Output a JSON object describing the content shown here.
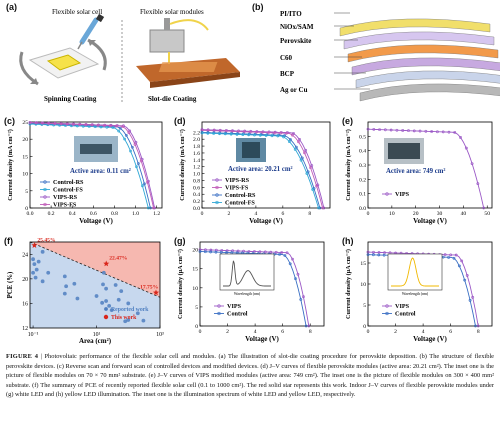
{
  "panels": {
    "a": {
      "label": "(a)",
      "cell_title": "Flexible solar cell",
      "module_title": "Flexible solar modules",
      "spin_label": "Spinning Coating",
      "slot_label": "Slot-die Coating"
    },
    "b": {
      "label": "(b)",
      "layers": [
        "PI/ITO",
        "NiOx/SAM",
        "Perovskite",
        "C60",
        "BCP",
        "Ag or Cu"
      ],
      "colors": [
        "#f1df6b",
        "#d6c6ef",
        "#f29a4a",
        "#c7a9e0",
        "#c9d4ea",
        "#b8b8b8"
      ]
    },
    "c": {
      "label": "(c)",
      "inset_text": "Active area: 0.11 cm²",
      "xlabel": "Voltage (V)",
      "ylabel": "Current density (mA cm⁻²)"
    },
    "d": {
      "label": "(d)",
      "inset_text": "Active area: 20.21 cm²",
      "xlabel": "Voltage (V)",
      "ylabel": "Current density (mA cm⁻²)"
    },
    "e": {
      "label": "(e)",
      "inset_text": "Active area: 749 cm²",
      "xlabel": "Voltage (V)",
      "ylabel": "Current density (mA cm⁻²)"
    },
    "f": {
      "label": "(f)",
      "xlabel": "Area (cm²)",
      "ylabel": "PCE (%)",
      "legend_reported": "Reported work",
      "legend_this": "This work"
    },
    "g": {
      "label": "(g)",
      "xlabel": "Voltage (V)",
      "ylabel": "Current density (μA cm⁻²)",
      "inset_xlabel": "Wavelength (nm)"
    },
    "h": {
      "label": "(h)",
      "xlabel": "Voltage (V)",
      "ylabel": "Current density (μA cm⁻²)",
      "inset_xlabel": "Wavelength (nm)"
    }
  },
  "chart_data": [
    {
      "panel": "c",
      "type": "line",
      "xlim": [
        0,
        1.25
      ],
      "ylim": [
        0,
        25
      ],
      "xticks": [
        0,
        0.2,
        0.4,
        0.6,
        0.8,
        1.0,
        1.2
      ],
      "xtick_labels": [
        "0.0",
        "0.2",
        "0.4",
        "0.6",
        "0.8",
        "1.0",
        "1.2"
      ],
      "yticks": [
        0,
        5,
        10,
        15,
        20,
        25
      ],
      "series": [
        {
          "name": "Control-RS",
          "color": "#3a6fc4",
          "jsc": 24.6,
          "voc": 1.14,
          "knee": 0.82
        },
        {
          "name": "Control-FS",
          "color": "#31a8d6",
          "jsc": 24.4,
          "voc": 1.12,
          "knee": 0.78
        },
        {
          "name": "VIPS-RS",
          "color": "#9b59c6",
          "jsc": 24.9,
          "voc": 1.18,
          "knee": 0.88
        },
        {
          "name": "VIPS-FS",
          "color": "#c05bb8",
          "jsc": 24.8,
          "voc": 1.17,
          "knee": 0.86
        }
      ]
    },
    {
      "panel": "d",
      "type": "line",
      "xlim": [
        0,
        9.5
      ],
      "ylim": [
        0,
        2.5
      ],
      "xticks": [
        0,
        2,
        4,
        6,
        8
      ],
      "xtick_labels": [
        "0",
        "2",
        "4",
        "6",
        "8"
      ],
      "yticks": [
        0,
        0.2,
        0.4,
        0.6,
        0.8,
        1.0,
        1.2,
        1.4,
        1.6,
        1.8,
        2.0,
        2.2
      ],
      "ytick_labels": [
        "0.0",
        "0.2",
        "0.4",
        "0.6",
        "0.8",
        "1.0",
        "1.2",
        "1.4",
        "1.6",
        "1.8",
        "2.0",
        "2.2"
      ],
      "series": [
        {
          "name": "VIPS-RS",
          "color": "#9b59c6",
          "jsc": 2.28,
          "voc": 9.05,
          "knee": 6.6
        },
        {
          "name": "VIPS-FS",
          "color": "#c05bb8",
          "jsc": 2.26,
          "voc": 8.95,
          "knee": 6.4
        },
        {
          "name": "Control-RS",
          "color": "#3a6fc4",
          "jsc": 2.2,
          "voc": 8.75,
          "knee": 6.0
        },
        {
          "name": "Control-FS",
          "color": "#31a8d6",
          "jsc": 2.18,
          "voc": 8.65,
          "knee": 5.8
        }
      ]
    },
    {
      "panel": "e",
      "type": "line",
      "xlim": [
        0,
        52
      ],
      "ylim": [
        0,
        0.6
      ],
      "xticks": [
        0,
        10,
        20,
        30,
        40,
        50
      ],
      "xtick_labels": [
        "0",
        "10",
        "20",
        "30",
        "40",
        "50"
      ],
      "yticks": [
        0,
        0.1,
        0.2,
        0.3,
        0.4,
        0.5
      ],
      "ytick_labels": [
        "0.0",
        "0.1",
        "0.2",
        "0.3",
        "0.4",
        "0.5"
      ],
      "series": [
        {
          "name": "VIPS",
          "color": "#9b59c6",
          "jsc": 0.55,
          "voc": 48.5,
          "knee": 36
        }
      ]
    },
    {
      "panel": "f",
      "type": "scatter",
      "xscale": "log",
      "xlim": [
        0.08,
        1000
      ],
      "ylim": [
        12,
        26
      ],
      "xticks": [
        0.1,
        10,
        1000
      ],
      "xtick_labels": [
        "10⁻¹",
        "10¹",
        "10³"
      ],
      "yticks": [
        12,
        16,
        20,
        24
      ],
      "reported": [
        [
          0.1,
          21.0
        ],
        [
          0.1,
          23.2
        ],
        [
          0.11,
          22.4
        ],
        [
          0.12,
          20.2
        ],
        [
          0.13,
          21.5
        ],
        [
          0.15,
          22.8
        ],
        [
          0.2,
          24.4
        ],
        [
          0.2,
          19.6
        ],
        [
          0.3,
          21.0
        ],
        [
          1,
          20.4
        ],
        [
          1,
          17.6
        ],
        [
          1.1,
          18.8
        ],
        [
          2,
          19.2
        ],
        [
          2.5,
          16.8
        ],
        [
          10,
          17.2
        ],
        [
          15,
          16.1
        ],
        [
          16,
          19.1
        ],
        [
          17,
          21.0
        ],
        [
          20,
          18.4
        ],
        [
          20,
          16.4
        ],
        [
          25,
          15.6
        ],
        [
          30,
          14.9
        ],
        [
          40,
          19.0
        ],
        [
          50,
          16.6
        ],
        [
          60,
          18.0
        ],
        [
          80,
          13.1
        ],
        [
          100,
          16.0
        ],
        [
          200,
          14.4
        ],
        [
          300,
          13.2
        ],
        [
          100,
          13.3
        ]
      ],
      "this_work": [
        [
          0.11,
          25.45
        ],
        [
          20.21,
          22.47
        ],
        [
          749,
          17.75
        ]
      ],
      "this_work_labels": [
        "25.45%",
        "22.47%",
        "17.75%"
      ],
      "trend": [
        [
          0.08,
          26.0
        ],
        [
          1000,
          17.0
        ]
      ]
    },
    {
      "panel": "g",
      "type": "line",
      "xlim": [
        0,
        9
      ],
      "ylim": [
        0,
        22
      ],
      "xticks": [
        0,
        2,
        4,
        6,
        8
      ],
      "yticks": [
        0,
        5,
        10,
        15,
        20
      ],
      "series": [
        {
          "name": "VIPS",
          "color": "#9b59c6",
          "jsc": 20.0,
          "voc": 7.9,
          "knee": 6.3
        },
        {
          "name": "Control",
          "color": "#3a6fc4",
          "jsc": 19.5,
          "voc": 7.7,
          "knee": 6.0
        }
      ],
      "inset_spectrum": "white"
    },
    {
      "panel": "h",
      "type": "line",
      "xlim": [
        0,
        9
      ],
      "ylim": [
        0,
        20
      ],
      "xticks": [
        0,
        2,
        4,
        6,
        8
      ],
      "yticks": [
        0,
        5,
        10,
        15
      ],
      "series": [
        {
          "name": "VIPS",
          "color": "#9b59c6",
          "jsc": 17.6,
          "voc": 8.0,
          "knee": 6.4
        },
        {
          "name": "Control",
          "color": "#3a6fc4",
          "jsc": 17.0,
          "voc": 7.8,
          "knee": 6.1
        }
      ],
      "inset_spectrum": "yellow"
    }
  ],
  "caption": {
    "label": "FIGURE 4",
    "text": "| Photovoltaic performance of the flexible solar cell and modules. (a) The illustration of slot-die coating procedure for perovskite deposition. (b) The structure of flexible perovskite devices. (c) Reverse scan and forward scan of controlled devices and modified devices. (d) J–V curves of flexible perovskite modules (active area: 20.21 cm²). The inset one is the picture of flexible modules on 70 × 70 mm² substrate. (e) J–V curves of VIPS modified modules (active area: 749 cm²). The inset one is the picture of flexible modules on 300 × 400 mm² substrate. (f) The summary of PCE of recently reported flexible solar cell (0.1 to 1000 cm²). The red solid star represents this work. Indoor J–V curves of flexible perovskite modules under (g) white LED and (h) yellow LED illumination. The inset one is the illumination spectrum of white LED and yellow LED, respectively."
  }
}
